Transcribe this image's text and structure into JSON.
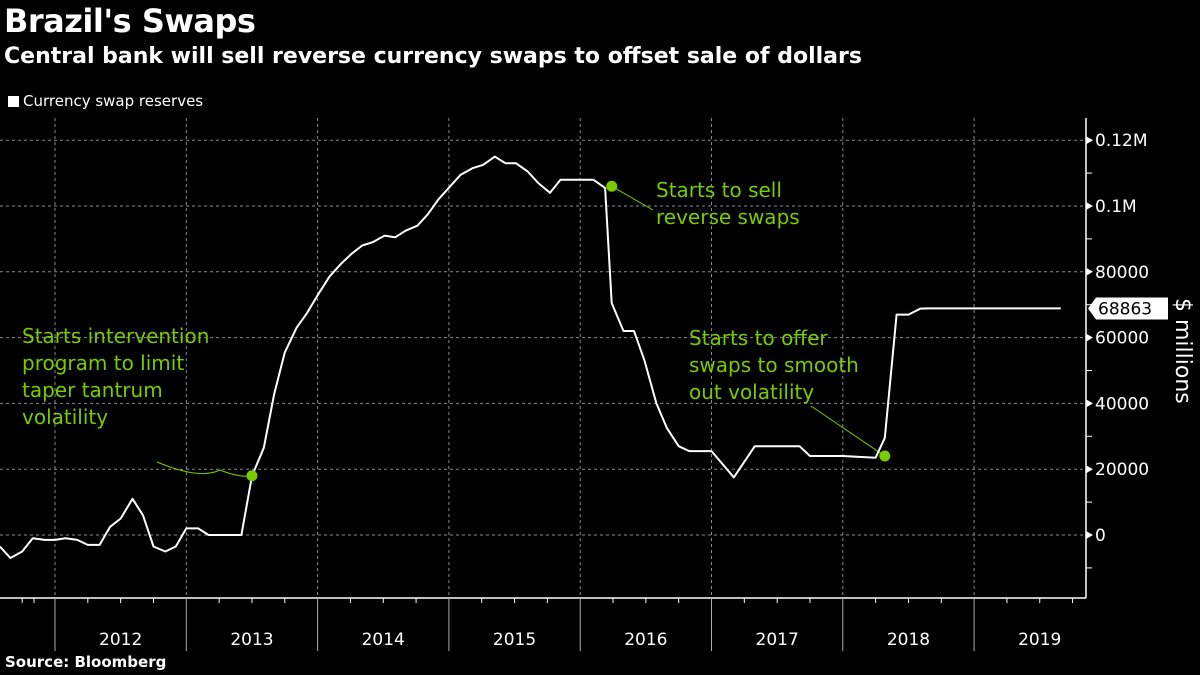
{
  "header": {
    "title": "Brazil's Swaps",
    "subtitle": "Central bank will sell reverse currency swaps to offset sale of dollars"
  },
  "legend": {
    "label": "Currency swap reserves"
  },
  "footer": {
    "source": "Source:  Bloomberg"
  },
  "colors": {
    "line": "#ffffff",
    "annotation": "#77cc00",
    "grid": "#8a8a8a",
    "background": "#000000"
  },
  "chart_data": {
    "type": "line",
    "title": "Brazil's Swaps",
    "subtitle": "Central bank will sell reverse currency swaps to offset sale of dollars",
    "xlabel": "",
    "ylabel": "$ millions",
    "xlim": [
      2011.58,
      2019.84
    ],
    "ylim": [
      -19500,
      126000
    ],
    "grid": true,
    "legend_position": "top-left",
    "y_ticks": [
      {
        "value": 120000,
        "label": "0.12M"
      },
      {
        "value": 100000,
        "label": "0.1M"
      },
      {
        "value": 80000,
        "label": "80000"
      },
      {
        "value": 60000,
        "label": "60000"
      },
      {
        "value": 40000,
        "label": "40000"
      },
      {
        "value": 20000,
        "label": "20000"
      },
      {
        "value": 0,
        "label": "0"
      }
    ],
    "x_ticks": [
      {
        "value": 2012,
        "label": "2012"
      },
      {
        "value": 2013,
        "label": "2013"
      },
      {
        "value": 2014,
        "label": "2014"
      },
      {
        "value": 2015,
        "label": "2015"
      },
      {
        "value": 2016,
        "label": "2016"
      },
      {
        "value": 2017,
        "label": "2017"
      },
      {
        "value": 2018,
        "label": "2018"
      },
      {
        "value": 2019,
        "label": "2019"
      }
    ],
    "last_value_label": "68863",
    "series": [
      {
        "name": "Currency swap reserves",
        "x": [
          2011.58,
          2011.66,
          2011.75,
          2011.83,
          2011.92,
          2012.0,
          2012.08,
          2012.17,
          2012.25,
          2012.34,
          2012.42,
          2012.5,
          2012.59,
          2012.67,
          2012.75,
          2012.84,
          2012.92,
          2013.0,
          2013.09,
          2013.17,
          2013.25,
          2013.42,
          2013.5,
          2013.59,
          2013.67,
          2013.75,
          2013.84,
          2013.92,
          2014.01,
          2014.09,
          2014.18,
          2014.26,
          2014.34,
          2014.42,
          2014.51,
          2014.59,
          2014.67,
          2014.76,
          2014.84,
          2014.92,
          2015.01,
          2015.09,
          2015.18,
          2015.26,
          2015.35,
          2015.43,
          2015.51,
          2015.6,
          2015.68,
          2015.77,
          2015.85,
          2015.94,
          2016.1,
          2016.19,
          2016.24,
          2016.33,
          2016.41,
          2016.49,
          2016.58,
          2016.66,
          2016.75,
          2016.83,
          2016.91,
          2017.0,
          2017.17,
          2017.33,
          2017.42,
          2017.59,
          2017.67,
          2017.75,
          2017.83,
          2018.0,
          2018.25,
          2018.32,
          2018.41,
          2018.5,
          2018.59,
          2018.66,
          2019.19,
          2019.66
        ],
        "values": [
          -3500,
          -7000,
          -5000,
          -1000,
          -1500,
          -1500,
          -1000,
          -1500,
          -3000,
          -3000,
          2500,
          5000,
          11000,
          6000,
          -3500,
          -5000,
          -3500,
          2000,
          2000,
          0,
          0,
          0,
          18000,
          26500,
          43000,
          55500,
          63000,
          67500,
          73500,
          78500,
          82500,
          85500,
          88000,
          89000,
          91000,
          90500,
          92500,
          94000,
          97500,
          102000,
          106000,
          109500,
          111500,
          112500,
          115000,
          113000,
          113000,
          110500,
          107000,
          104000,
          108000,
          108000,
          108000,
          105500,
          70500,
          62000,
          62000,
          53000,
          40000,
          32500,
          27000,
          25500,
          25500,
          25500,
          17500,
          27000,
          27000,
          27000,
          27000,
          24000,
          24000,
          24000,
          23500,
          29500,
          67000,
          67000,
          68800,
          68863,
          68863,
          68863
        ]
      }
    ],
    "annotations": [
      {
        "text": [
          "Starts intervention",
          "program to limit",
          "taper tantrum",
          "volatility"
        ],
        "x": 2013.5,
        "y": 18000
      },
      {
        "text": [
          "Starts to sell",
          "reverse swaps"
        ],
        "x": 2016.24,
        "y": 106000
      },
      {
        "text": [
          "Starts to offer",
          "swaps to smooth",
          "out volatility"
        ],
        "x": 2018.32,
        "y": 24000
      }
    ]
  }
}
